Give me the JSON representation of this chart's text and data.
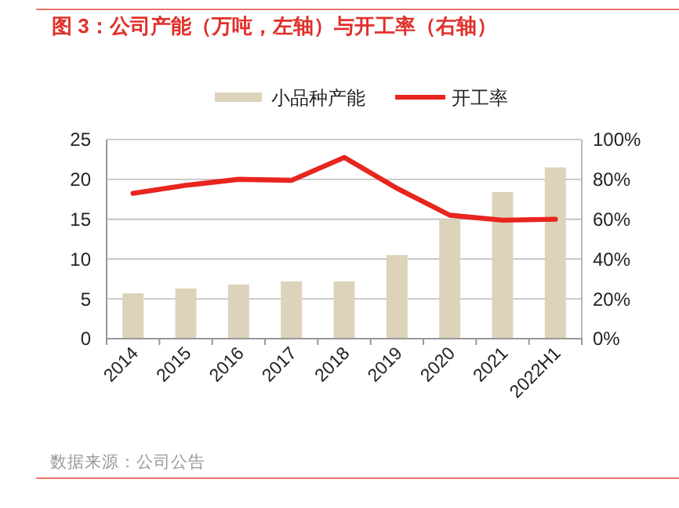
{
  "chart_data": {
    "type": "bar",
    "title": "图 3：公司产能（万吨，左轴）与开工率（右轴）",
    "annotations": [
      "数据来源：公司公告"
    ],
    "categories": [
      "2014",
      "2015",
      "2016",
      "2017",
      "2018",
      "2019",
      "2020",
      "2021",
      "2022H1"
    ],
    "series": [
      {
        "name": "小品种产能",
        "color": "#ddd3bb",
        "values": [
          5.7,
          6.3,
          6.8,
          7.2,
          7.2,
          10.5,
          15,
          18.4,
          21.5
        ]
      },
      {
        "name": "开工率",
        "type": "line",
        "axis": "y2",
        "color": "#e8251f",
        "values": [
          73,
          77,
          80,
          79.5,
          91,
          75.5,
          62,
          59.5,
          60
        ]
      }
    ],
    "ylim": [
      0,
      25
    ],
    "yticks": [
      0,
      5,
      10,
      15,
      20,
      25
    ],
    "y2lim": [
      0,
      100
    ],
    "y2ticks": [
      {
        "value": 0,
        "label": "0%"
      },
      {
        "value": 20,
        "label": "20%"
      },
      {
        "value": 40,
        "label": "40%"
      },
      {
        "value": 60,
        "label": "60%"
      },
      {
        "value": 80,
        "label": "80%"
      },
      {
        "value": 100,
        "label": "100%"
      }
    ],
    "grid": "y",
    "legend": "top"
  }
}
